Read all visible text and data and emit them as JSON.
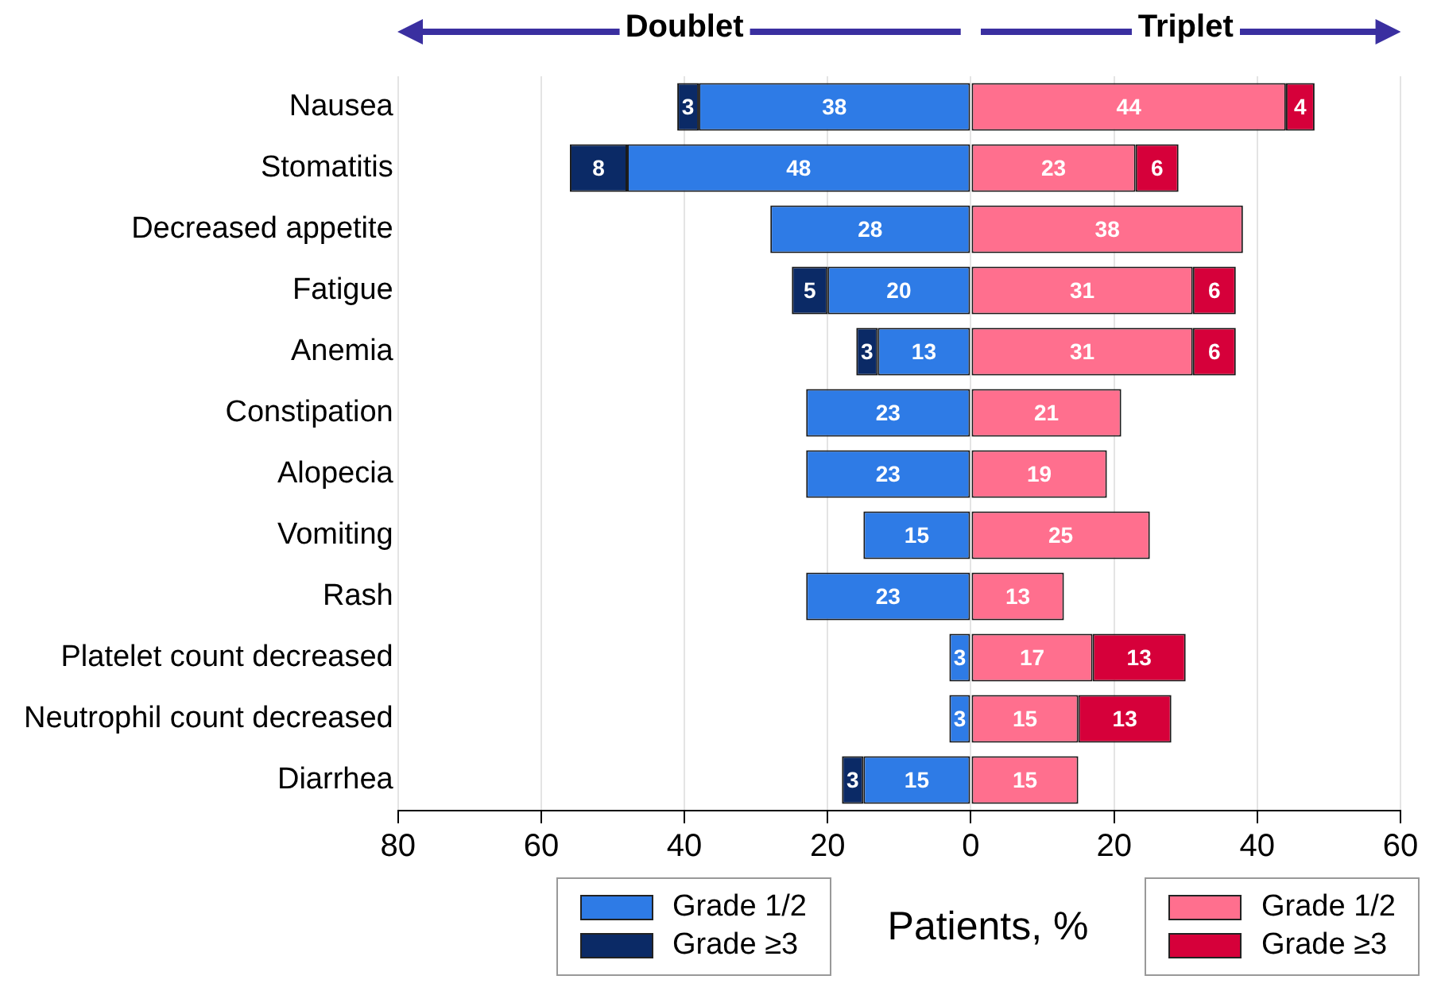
{
  "chart_data": {
    "type": "bar",
    "orientation": "horizontal",
    "categories": [
      "Nausea",
      "Stomatitis",
      "Decreased appetite",
      "Fatigue",
      "Anemia",
      "Constipation",
      "Alopecia",
      "Vomiting",
      "Rash",
      "Platelet count decreased",
      "Neutrophil count decreased",
      "Diarrhea"
    ],
    "series": [
      {
        "name": "Grade 1/2",
        "color": "#2e7be6",
        "values": [
          38,
          48,
          28,
          20,
          13,
          23,
          23,
          15,
          23,
          3,
          3,
          15
        ],
        "base": [
          -38,
          -48,
          -28,
          -20,
          -13,
          -23,
          -23,
          -15,
          -23,
          -3,
          -3,
          -15
        ]
      },
      {
        "name": "Grade ≥3",
        "color": "#0b2a66",
        "values": [
          3,
          8,
          null,
          5,
          3,
          null,
          null,
          null,
          null,
          null,
          null,
          3
        ],
        "base": [
          -41,
          -56,
          null,
          -25,
          -16,
          null,
          null,
          null,
          null,
          null,
          null,
          -18
        ]
      },
      {
        "name": "Grade 1/2",
        "color": "#ff6f8e",
        "values": [
          44,
          23,
          38,
          31,
          31,
          21,
          19,
          25,
          13,
          17,
          15,
          15
        ],
        "base": [
          0,
          0,
          0,
          0,
          0,
          0,
          0,
          0,
          0,
          0,
          0,
          0
        ]
      },
      {
        "name": "Grade ≥3",
        "color": "#d6003a",
        "values": [
          4,
          6,
          null,
          6,
          6,
          null,
          null,
          null,
          null,
          13,
          13,
          null
        ],
        "base": [
          44,
          23,
          null,
          31,
          31,
          null,
          null,
          null,
          null,
          17,
          15,
          null
        ]
      }
    ],
    "xlim": [
      -80,
      60
    ],
    "xticks": [
      {
        "value": -80,
        "label": "80"
      },
      {
        "value": -60,
        "label": "60"
      },
      {
        "value": -40,
        "label": "40"
      },
      {
        "value": -20,
        "label": "20"
      },
      0,
      20,
      40,
      60
    ],
    "xlabel": "Patients, %",
    "annotations": [
      "Doublet",
      "Triplet"
    ],
    "data_labels": true,
    "grid": "x",
    "legend": "bottom"
  }
}
